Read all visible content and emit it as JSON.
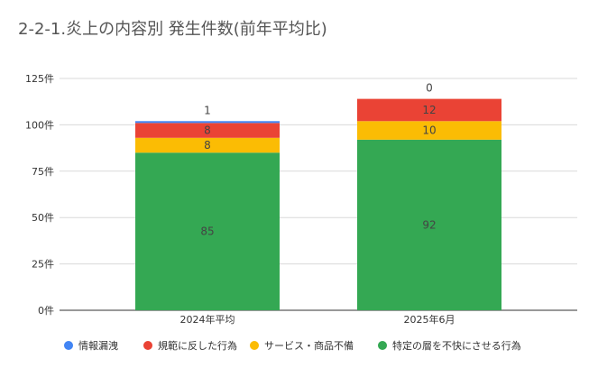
{
  "chart_data": {
    "type": "bar",
    "stacked": true,
    "title": "2-2-1.炎上の内容別 発生件数(前年平均比)",
    "categories": [
      "2024年平均",
      "2025年6月"
    ],
    "series": [
      {
        "name": "特定の層を不快にさせる行為",
        "color": "#34a853",
        "values": [
          85,
          92
        ]
      },
      {
        "name": "サービス・商品不備",
        "color": "#fbbc04",
        "values": [
          8,
          10
        ]
      },
      {
        "name": "規範に反した行為",
        "color": "#ea4335",
        "values": [
          8,
          12
        ]
      },
      {
        "name": "情報漏洩",
        "color": "#4285f4",
        "values": [
          1,
          0
        ]
      }
    ],
    "legend_order": [
      "情報漏洩",
      "規範に反した行為",
      "サービス・商品不備",
      "特定の層を不快にさせる行為"
    ],
    "yticks": [
      "0件",
      "25件",
      "50件",
      "75件",
      "100件",
      "125件"
    ],
    "ylim": [
      0,
      125
    ],
    "grid": true,
    "legend_position": "bottom"
  }
}
